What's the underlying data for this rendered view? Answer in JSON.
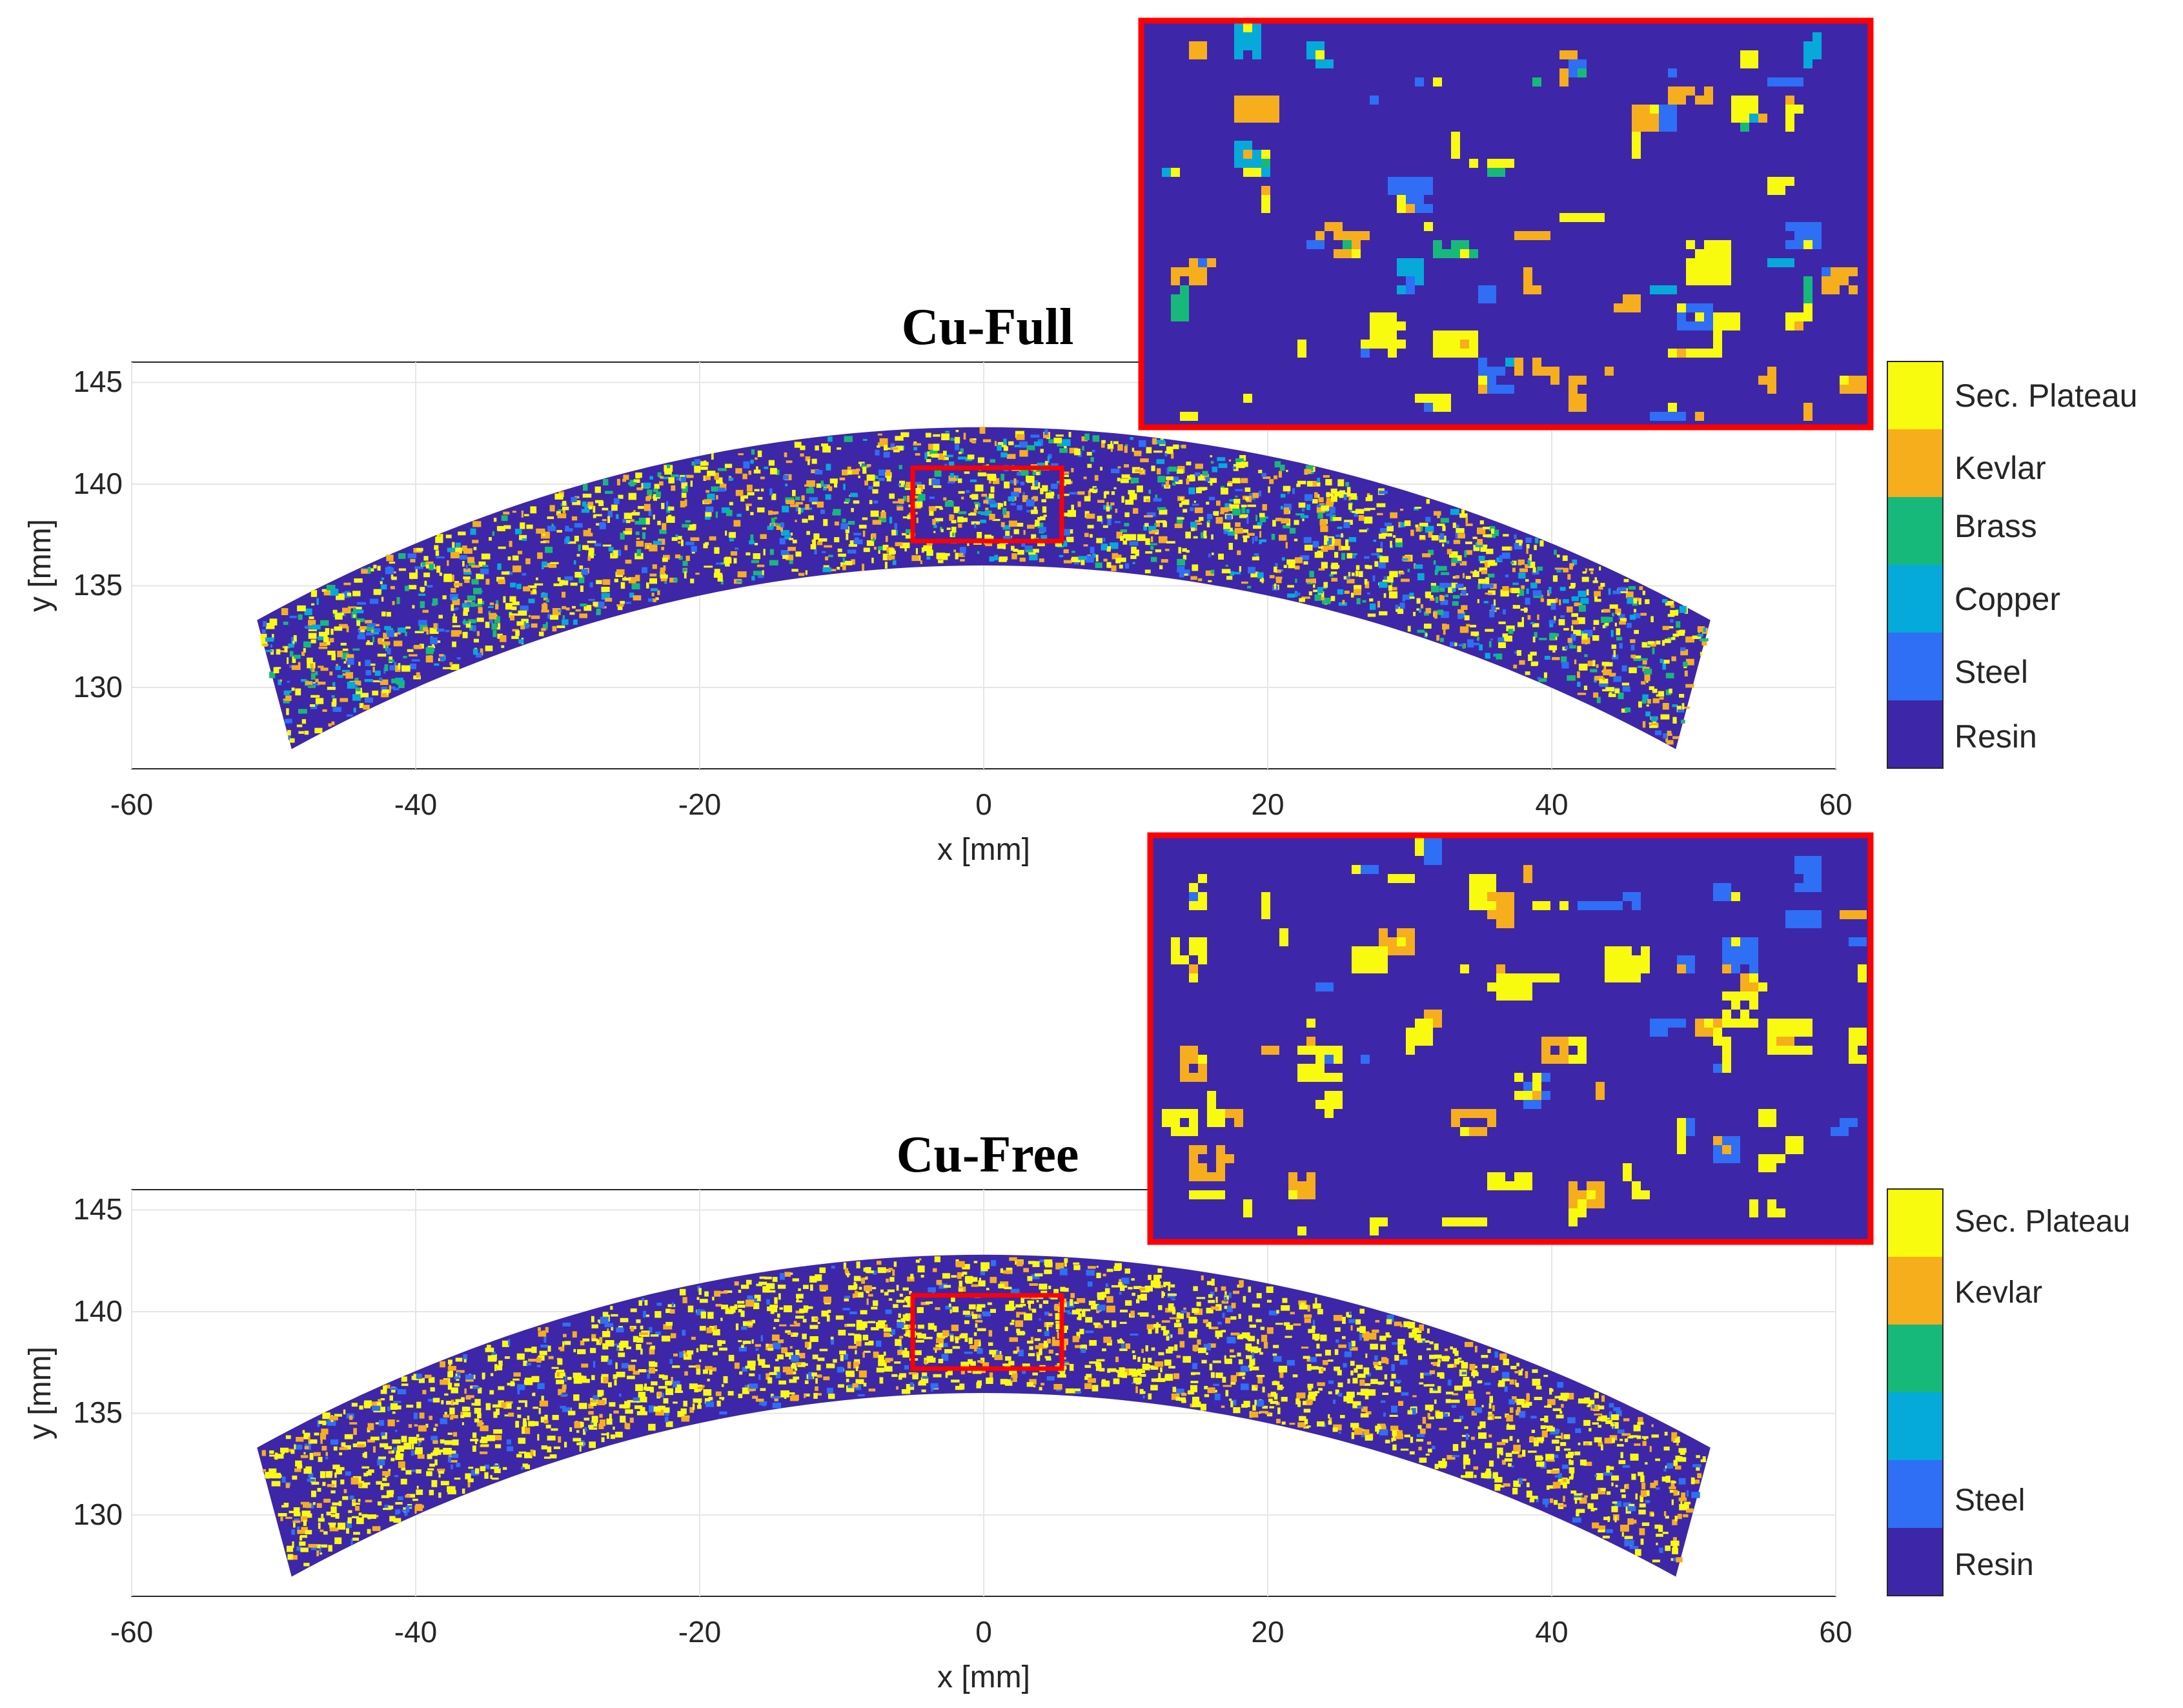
{
  "colors": {
    "resin": "#3e26a8",
    "steel": "#2e6ff5",
    "copper": "#05aadb",
    "brass": "#17b97a",
    "kevlar": "#f7ae1c",
    "sec_plateau": "#f9fb0e",
    "highlight": "#ff0000"
  },
  "chart_data": [
    {
      "type": "heatmap",
      "title": "Cu-Full",
      "xlabel": "x [mm]",
      "ylabel": "y [mm]",
      "xlim": [
        -60,
        60
      ],
      "ylim": [
        126,
        146
      ],
      "xticks": [
        "-60",
        "-40",
        "-20",
        "0",
        "20",
        "40",
        "60"
      ],
      "yticks": [
        "130",
        "135",
        "140",
        "145"
      ],
      "grid": true,
      "geometry": {
        "r_inner": 136,
        "r_outer": 142.8,
        "theta_half_deg": 21
      },
      "zoom_region": {
        "x": [
          -5,
          5.5
        ],
        "y": [
          137.2,
          140.8
        ]
      },
      "categories": [
        "Resin",
        "Steel",
        "Copper",
        "Brass",
        "Kevlar",
        "Sec. Plateau"
      ],
      "colorbar_labels": [
        "Sec. Plateau",
        "Kevlar",
        "Brass",
        "Copper",
        "Steel",
        "Resin"
      ],
      "phase_fractions": {
        "Resin": 0.8,
        "Steel": 0.025,
        "Copper": 0.02,
        "Brass": 0.025,
        "Kevlar": 0.05,
        "Sec. Plateau": 0.08
      },
      "seed": 11
    },
    {
      "type": "heatmap",
      "title": "Cu-Free",
      "xlabel": "x [mm]",
      "ylabel": "y [mm]",
      "xlim": [
        -60,
        60
      ],
      "ylim": [
        126,
        146
      ],
      "xticks": [
        "-60",
        "-40",
        "-20",
        "0",
        "20",
        "40",
        "60"
      ],
      "yticks": [
        "130",
        "135",
        "140",
        "145"
      ],
      "grid": true,
      "geometry": {
        "r_inner": 136,
        "r_outer": 142.8,
        "theta_half_deg": 21
      },
      "zoom_region": {
        "x": [
          -5,
          5.5
        ],
        "y": [
          137.2,
          140.8
        ]
      },
      "categories": [
        "Resin",
        "Steel",
        "Kevlar",
        "Sec. Plateau"
      ],
      "colorbar_labels": [
        "Sec. Plateau",
        "Kevlar",
        "",
        "",
        "Steel",
        "Resin"
      ],
      "phase_fractions": {
        "Resin": 0.78,
        "Steel": 0.03,
        "Kevlar": 0.05,
        "Sec. Plateau": 0.14
      },
      "seed": 29
    }
  ]
}
